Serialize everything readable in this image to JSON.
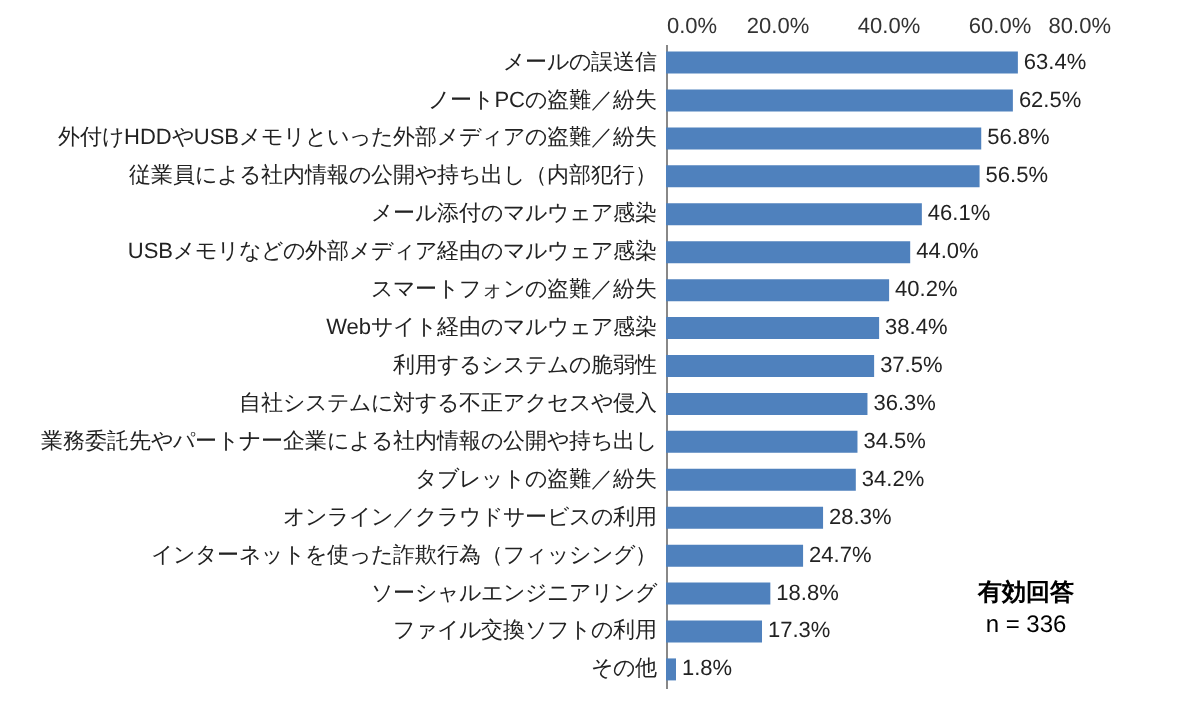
{
  "chart_data": {
    "type": "bar",
    "orientation": "horizontal",
    "categories": [
      "メールの誤送信",
      "ノートPCの盗難／紛失",
      "外付けHDDやUSBメモリといった外部メディアの盗難／紛失",
      "従業員による社内情報の公開や持ち出し（内部犯行）",
      "メール添付のマルウェア感染",
      "USBメモリなどの外部メディア経由のマルウェア感染",
      "スマートフォンの盗難／紛失",
      "Webサイト経由のマルウェア感染",
      "利用するシステムの脆弱性",
      "自社システムに対する不正アクセスや侵入",
      "業務委託先やパートナー企業による社内情報の公開や持ち出し",
      "タブレットの盗難／紛失",
      "オンライン／クラウドサービスの利用",
      "インターネットを使った詐欺行為（フィッシング）",
      "ソーシャルエンジニアリング",
      "ファイル交換ソフトの利用",
      "その他"
    ],
    "values": [
      63.4,
      62.5,
      56.8,
      56.5,
      46.1,
      44.0,
      40.2,
      38.4,
      37.5,
      36.3,
      34.5,
      34.2,
      28.3,
      24.7,
      18.8,
      17.3,
      1.8
    ],
    "value_labels": [
      "63.4%",
      "62.5%",
      "56.8%",
      "56.5%",
      "46.1%",
      "44.0%",
      "40.2%",
      "38.4%",
      "37.5%",
      "36.3%",
      "34.5%",
      "34.2%",
      "28.3%",
      "24.7%",
      "18.8%",
      "17.3%",
      "1.8%"
    ],
    "color": "#4f81bd",
    "xlim": [
      0,
      80
    ],
    "xticks": [
      {
        "value": 0,
        "label": "0.0%"
      },
      {
        "value": 20,
        "label": "20.0%"
      },
      {
        "value": 40,
        "label": "40.0%"
      },
      {
        "value": 60,
        "label": "60.0%"
      },
      {
        "value": 80,
        "label": "80.0%"
      }
    ],
    "annotations": [
      "有効回答",
      "n = 336"
    ]
  }
}
